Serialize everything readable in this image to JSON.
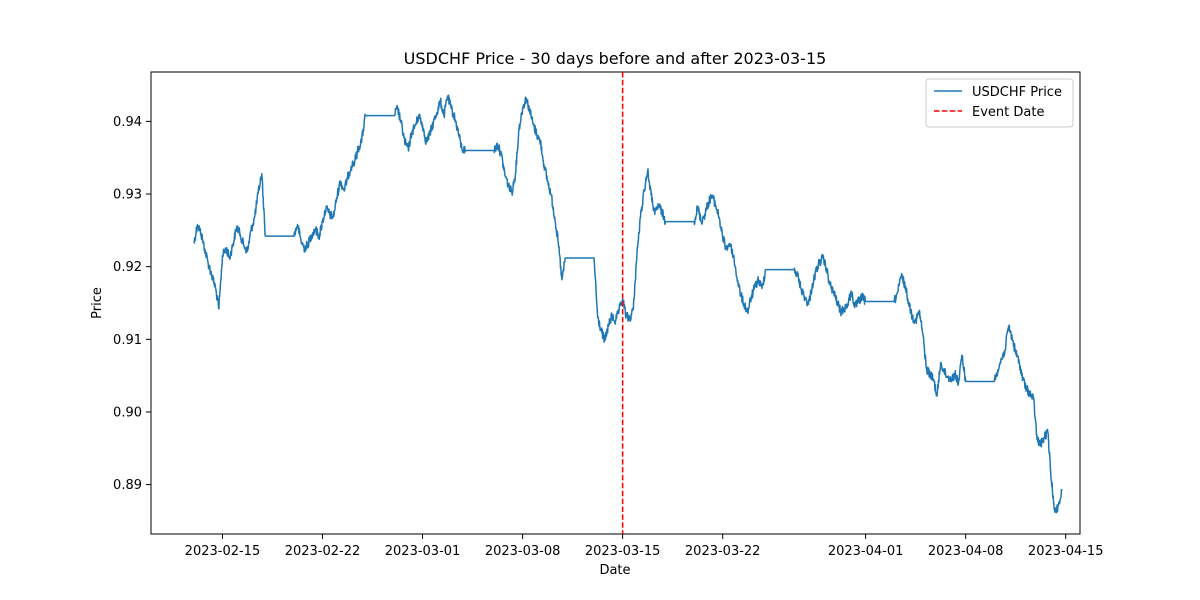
{
  "chart_data": {
    "type": "line",
    "title": "USDCHF Price - 30 days before and after 2023-03-15",
    "xlabel": "Date",
    "ylabel": "Price",
    "x_range": [
      "2023-02-10",
      "2023-04-16"
    ],
    "ylim": [
      0.8832,
      0.9468
    ],
    "x_ticks": [
      "2023-02-15",
      "2023-02-22",
      "2023-03-01",
      "2023-03-08",
      "2023-03-15",
      "2023-03-22",
      "2023-04-01",
      "2023-04-08",
      "2023-04-15"
    ],
    "y_ticks": [
      0.89,
      0.9,
      0.91,
      0.92,
      0.93,
      0.94
    ],
    "y_tick_labels": [
      "0.89",
      "0.90",
      "0.91",
      "0.92",
      "0.93",
      "0.94"
    ],
    "grid": false,
    "legend_position": "top-right",
    "series": [
      {
        "name": "USDCHF Price",
        "color": "#1f77b4",
        "points": [
          [
            "2023-02-13 00:00",
            0.9232
          ],
          [
            "2023-02-13 06:00",
            0.9258
          ],
          [
            "2023-02-13 12:00",
            0.9246
          ],
          [
            "2023-02-13 18:00",
            0.9225
          ],
          [
            "2023-02-14 00:00",
            0.9205
          ],
          [
            "2023-02-14 06:00",
            0.9188
          ],
          [
            "2023-02-14 12:00",
            0.9172
          ],
          [
            "2023-02-14 18:00",
            0.9142
          ],
          [
            "2023-02-15 00:00",
            0.9215
          ],
          [
            "2023-02-15 06:00",
            0.9225
          ],
          [
            "2023-02-15 12:00",
            0.9212
          ],
          [
            "2023-02-15 18:00",
            0.9232
          ],
          [
            "2023-02-16 00:00",
            0.9255
          ],
          [
            "2023-02-16 06:00",
            0.9244
          ],
          [
            "2023-02-16 12:00",
            0.9229
          ],
          [
            "2023-02-16 18:00",
            0.9221
          ],
          [
            "2023-02-17 00:00",
            0.925
          ],
          [
            "2023-02-17 06:00",
            0.9268
          ],
          [
            "2023-02-17 12:00",
            0.9301
          ],
          [
            "2023-02-17 18:00",
            0.9328
          ],
          [
            "2023-02-18 00:00",
            0.9242
          ],
          [
            "2023-02-20 00:00",
            0.9242
          ],
          [
            "2023-02-20 06:00",
            0.9258
          ],
          [
            "2023-02-20 12:00",
            0.9235
          ],
          [
            "2023-02-20 18:00",
            0.9225
          ],
          [
            "2023-02-21 00:00",
            0.9232
          ],
          [
            "2023-02-21 06:00",
            0.9244
          ],
          [
            "2023-02-21 12:00",
            0.9252
          ],
          [
            "2023-02-21 18:00",
            0.9241
          ],
          [
            "2023-02-22 00:00",
            0.9262
          ],
          [
            "2023-02-22 06:00",
            0.9281
          ],
          [
            "2023-02-22 12:00",
            0.9272
          ],
          [
            "2023-02-22 18:00",
            0.9268
          ],
          [
            "2023-02-23 00:00",
            0.9295
          ],
          [
            "2023-02-23 06:00",
            0.9318
          ],
          [
            "2023-02-23 12:00",
            0.9305
          ],
          [
            "2023-02-23 18:00",
            0.9322
          ],
          [
            "2023-02-24 00:00",
            0.9338
          ],
          [
            "2023-02-24 06:00",
            0.9345
          ],
          [
            "2023-02-24 12:00",
            0.9362
          ],
          [
            "2023-02-24 18:00",
            0.9375
          ],
          [
            "2023-02-25 00:00",
            0.9408
          ],
          [
            "2023-02-27 00:00",
            0.9408
          ],
          [
            "2023-02-27 06:00",
            0.9418
          ],
          [
            "2023-02-27 12:00",
            0.9398
          ],
          [
            "2023-02-27 18:00",
            0.9372
          ],
          [
            "2023-02-28 00:00",
            0.9362
          ],
          [
            "2023-02-28 06:00",
            0.9385
          ],
          [
            "2023-02-28 12:00",
            0.9395
          ],
          [
            "2023-02-28 18:00",
            0.9408
          ],
          [
            "2023-03-01 00:00",
            0.9395
          ],
          [
            "2023-03-01 06:00",
            0.9372
          ],
          [
            "2023-03-01 12:00",
            0.9382
          ],
          [
            "2023-03-01 18:00",
            0.9398
          ],
          [
            "2023-03-02 00:00",
            0.9412
          ],
          [
            "2023-03-02 06:00",
            0.9428
          ],
          [
            "2023-03-02 12:00",
            0.9408
          ],
          [
            "2023-03-02 18:00",
            0.9435
          ],
          [
            "2023-03-03 00:00",
            0.9418
          ],
          [
            "2023-03-03 06:00",
            0.9405
          ],
          [
            "2023-03-03 12:00",
            0.9385
          ],
          [
            "2023-03-03 18:00",
            0.9362
          ],
          [
            "2023-03-04 00:00",
            0.936
          ],
          [
            "2023-03-06 00:00",
            0.936
          ],
          [
            "2023-03-06 06:00",
            0.9368
          ],
          [
            "2023-03-06 12:00",
            0.9355
          ],
          [
            "2023-03-06 18:00",
            0.9328
          ],
          [
            "2023-03-07 00:00",
            0.9312
          ],
          [
            "2023-03-07 06:00",
            0.9302
          ],
          [
            "2023-03-07 12:00",
            0.9328
          ],
          [
            "2023-03-07 18:00",
            0.939
          ],
          [
            "2023-03-08 00:00",
            0.9418
          ],
          [
            "2023-03-08 06:00",
            0.9432
          ],
          [
            "2023-03-08 12:00",
            0.9415
          ],
          [
            "2023-03-08 18:00",
            0.9395
          ],
          [
            "2023-03-09 00:00",
            0.9382
          ],
          [
            "2023-03-09 06:00",
            0.9372
          ],
          [
            "2023-03-09 12:00",
            0.934
          ],
          [
            "2023-03-09 18:00",
            0.9318
          ],
          [
            "2023-03-10 00:00",
            0.9298
          ],
          [
            "2023-03-10 06:00",
            0.9268
          ],
          [
            "2023-03-10 12:00",
            0.9232
          ],
          [
            "2023-03-10 18:00",
            0.9182
          ],
          [
            "2023-03-11 00:00",
            0.9212
          ],
          [
            "2023-03-13 00:00",
            0.9212
          ],
          [
            "2023-03-13 06:00",
            0.913
          ],
          [
            "2023-03-13 12:00",
            0.9112
          ],
          [
            "2023-03-13 18:00",
            0.9098
          ],
          [
            "2023-03-14 00:00",
            0.9118
          ],
          [
            "2023-03-14 06:00",
            0.9132
          ],
          [
            "2023-03-14 12:00",
            0.9125
          ],
          [
            "2023-03-14 18:00",
            0.914
          ],
          [
            "2023-03-15 00:00",
            0.9155
          ],
          [
            "2023-03-15 06:00",
            0.9132
          ],
          [
            "2023-03-15 12:00",
            0.9128
          ],
          [
            "2023-03-15 18:00",
            0.9142
          ],
          [
            "2023-03-16 00:00",
            0.9218
          ],
          [
            "2023-03-16 06:00",
            0.9268
          ],
          [
            "2023-03-16 12:00",
            0.9305
          ],
          [
            "2023-03-16 18:00",
            0.9332
          ],
          [
            "2023-03-17 00:00",
            0.9298
          ],
          [
            "2023-03-17 06:00",
            0.9272
          ],
          [
            "2023-03-17 12:00",
            0.9285
          ],
          [
            "2023-03-17 18:00",
            0.9275
          ],
          [
            "2023-03-18 00:00",
            0.9262
          ],
          [
            "2023-03-20 00:00",
            0.9262
          ],
          [
            "2023-03-20 06:00",
            0.9282
          ],
          [
            "2023-03-20 12:00",
            0.9262
          ],
          [
            "2023-03-20 18:00",
            0.9272
          ],
          [
            "2023-03-21 00:00",
            0.9288
          ],
          [
            "2023-03-21 06:00",
            0.9298
          ],
          [
            "2023-03-21 12:00",
            0.9285
          ],
          [
            "2023-03-21 18:00",
            0.9268
          ],
          [
            "2023-03-22 00:00",
            0.924
          ],
          [
            "2023-03-22 06:00",
            0.9225
          ],
          [
            "2023-03-22 12:00",
            0.9232
          ],
          [
            "2023-03-22 18:00",
            0.9215
          ],
          [
            "2023-03-23 00:00",
            0.9185
          ],
          [
            "2023-03-23 06:00",
            0.9162
          ],
          [
            "2023-03-23 12:00",
            0.9148
          ],
          [
            "2023-03-23 18:00",
            0.9138
          ],
          [
            "2023-03-24 00:00",
            0.9158
          ],
          [
            "2023-03-24 06:00",
            0.9172
          ],
          [
            "2023-03-24 12:00",
            0.9182
          ],
          [
            "2023-03-24 18:00",
            0.917
          ],
          [
            "2023-03-25 00:00",
            0.9196
          ],
          [
            "2023-03-27 00:00",
            0.9196
          ],
          [
            "2023-03-27 06:00",
            0.9188
          ],
          [
            "2023-03-27 12:00",
            0.9168
          ],
          [
            "2023-03-27 18:00",
            0.9158
          ],
          [
            "2023-03-28 00:00",
            0.9148
          ],
          [
            "2023-03-28 06:00",
            0.9172
          ],
          [
            "2023-03-28 12:00",
            0.9192
          ],
          [
            "2023-03-28 18:00",
            0.9205
          ],
          [
            "2023-03-29 00:00",
            0.9212
          ],
          [
            "2023-03-29 06:00",
            0.9198
          ],
          [
            "2023-03-29 12:00",
            0.9175
          ],
          [
            "2023-03-29 18:00",
            0.9165
          ],
          [
            "2023-03-30 00:00",
            0.9152
          ],
          [
            "2023-03-30 06:00",
            0.9138
          ],
          [
            "2023-03-30 12:00",
            0.9142
          ],
          [
            "2023-03-30 18:00",
            0.9148
          ],
          [
            "2023-03-31 00:00",
            0.9165
          ],
          [
            "2023-03-31 06:00",
            0.9145
          ],
          [
            "2023-03-31 12:00",
            0.9152
          ],
          [
            "2023-03-31 18:00",
            0.9158
          ],
          [
            "2023-04-01 00:00",
            0.9152
          ],
          [
            "2023-04-03 00:00",
            0.9152
          ],
          [
            "2023-04-03 06:00",
            0.9165
          ],
          [
            "2023-04-03 12:00",
            0.9188
          ],
          [
            "2023-04-03 18:00",
            0.9175
          ],
          [
            "2023-04-04 00:00",
            0.9152
          ],
          [
            "2023-04-04 06:00",
            0.9132
          ],
          [
            "2023-04-04 12:00",
            0.9125
          ],
          [
            "2023-04-04 18:00",
            0.9138
          ],
          [
            "2023-04-05 00:00",
            0.9108
          ],
          [
            "2023-04-05 06:00",
            0.906
          ],
          [
            "2023-04-05 12:00",
            0.9052
          ],
          [
            "2023-04-05 18:00",
            0.9045
          ],
          [
            "2023-04-06 00:00",
            0.9022
          ],
          [
            "2023-04-06 06:00",
            0.9068
          ],
          [
            "2023-04-06 12:00",
            0.9055
          ],
          [
            "2023-04-06 18:00",
            0.9048
          ],
          [
            "2023-04-07 00:00",
            0.9045
          ],
          [
            "2023-04-07 06:00",
            0.9052
          ],
          [
            "2023-04-07 12:00",
            0.904
          ],
          [
            "2023-04-07 18:00",
            0.9078
          ],
          [
            "2023-04-08 00:00",
            0.9042
          ],
          [
            "2023-04-10 00:00",
            0.9042
          ],
          [
            "2023-04-10 06:00",
            0.9058
          ],
          [
            "2023-04-10 12:00",
            0.9072
          ],
          [
            "2023-04-10 18:00",
            0.9085
          ],
          [
            "2023-04-11 00:00",
            0.9118
          ],
          [
            "2023-04-11 06:00",
            0.9102
          ],
          [
            "2023-04-11 12:00",
            0.9082
          ],
          [
            "2023-04-11 18:00",
            0.9068
          ],
          [
            "2023-04-12 00:00",
            0.9045
          ],
          [
            "2023-04-12 06:00",
            0.9032
          ],
          [
            "2023-04-12 12:00",
            0.9025
          ],
          [
            "2023-04-12 18:00",
            0.9018
          ],
          [
            "2023-04-13 00:00",
            0.8962
          ],
          [
            "2023-04-13 06:00",
            0.8955
          ],
          [
            "2023-04-13 12:00",
            0.8965
          ],
          [
            "2023-04-13 18:00",
            0.8972
          ],
          [
            "2023-04-14 00:00",
            0.8905
          ],
          [
            "2023-04-14 06:00",
            0.8862
          ],
          [
            "2023-04-14 12:00",
            0.8872
          ],
          [
            "2023-04-14 18:00",
            0.8892
          ]
        ]
      },
      {
        "name": "Event Date",
        "color": "#ff0000",
        "style": "dashed",
        "x": "2023-03-15"
      }
    ]
  }
}
